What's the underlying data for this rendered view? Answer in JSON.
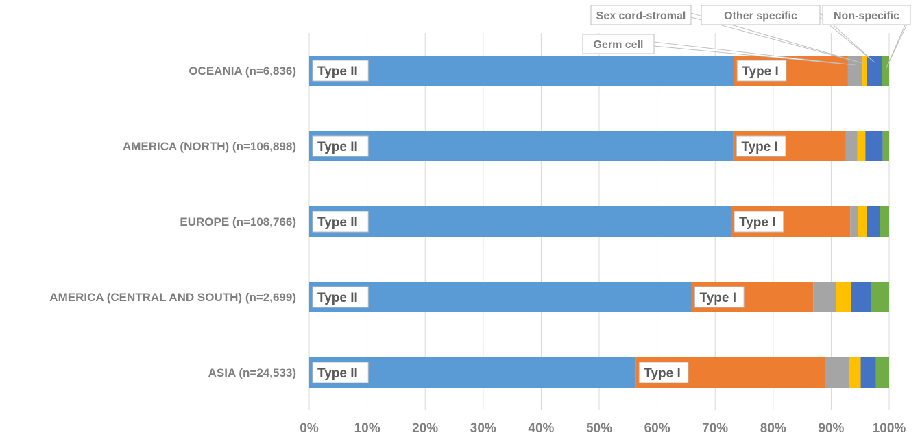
{
  "chart_data": {
    "type": "bar",
    "orientation": "horizontal",
    "stacked": true,
    "normalized": true,
    "categories": [
      "OCEANIA (n=6,836)",
      "AMERICA (NORTH) (n=106,898)",
      "EUROPE (n=108,766)",
      "AMERICA (CENTRAL AND SOUTH) (n=2,699)",
      "ASIA (n=24,533)"
    ],
    "series": [
      {
        "name": "Type II",
        "color": "#5b9bd5",
        "values": [
          73.2,
          73.1,
          72.7,
          65.9,
          56.3
        ]
      },
      {
        "name": "Type I",
        "color": "#ed7d31",
        "values": [
          19.7,
          19.4,
          20.6,
          21.0,
          32.6
        ]
      },
      {
        "name": "Germ cell",
        "color": "#a5a5a5",
        "values": [
          2.5,
          2.0,
          1.3,
          4.0,
          4.2
        ]
      },
      {
        "name": "Sex cord-stromal",
        "color": "#ffc000",
        "values": [
          0.8,
          1.4,
          1.5,
          2.6,
          2.0
        ]
      },
      {
        "name": "Other specific",
        "color": "#4472c4",
        "values": [
          2.6,
          3.0,
          2.3,
          3.4,
          2.6
        ]
      },
      {
        "name": "Non-specific",
        "color": "#70ad47",
        "values": [
          1.2,
          1.1,
          1.6,
          3.1,
          2.3
        ]
      }
    ],
    "segment_labels": [
      "Type II",
      "Type I"
    ],
    "callouts": [
      "Germ cell",
      "Sex cord-stromal",
      "Other specific",
      "Non-specific"
    ],
    "xlim": [
      0,
      100
    ],
    "x_ticks": [
      "0%",
      "10%",
      "20%",
      "30%",
      "40%",
      "50%",
      "60%",
      "70%",
      "80%",
      "90%",
      "100%"
    ],
    "grid": "vertical",
    "title": "",
    "xlabel": "",
    "ylabel": ""
  }
}
